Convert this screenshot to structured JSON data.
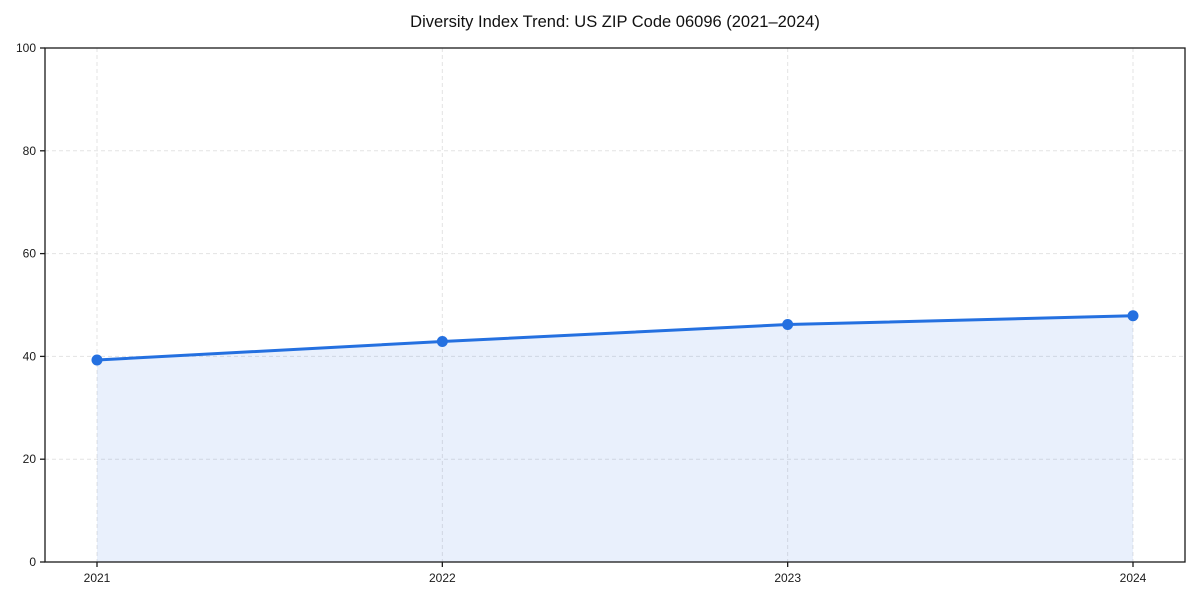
{
  "title": "Diversity Index Trend: US ZIP Code 06096 (2021–2024)",
  "colors": {
    "line": "#2470e0",
    "marker": "#2470e0",
    "area_fill": "#2470e0",
    "area_opacity": 0.1,
    "grid": "#e3e3e3",
    "axis": "#1a1a1a",
    "text": "#1a1a1a",
    "background": "#ffffff"
  },
  "chart_data": {
    "type": "line",
    "title": "Diversity Index Trend: US ZIP Code 06096 (2021–2024)",
    "categories": [
      "2021",
      "2022",
      "2023",
      "2024"
    ],
    "series": [
      {
        "name": "Diversity Index",
        "values": [
          39.3,
          42.9,
          46.2,
          47.9
        ]
      }
    ],
    "xlabel": "",
    "ylabel": "",
    "ylim": [
      0,
      100
    ],
    "yticks": [
      0,
      20,
      40,
      60,
      80,
      100
    ],
    "grid": true,
    "grid_style": "dashed",
    "legend": false,
    "markers": true,
    "area_fill_below_line": true
  }
}
